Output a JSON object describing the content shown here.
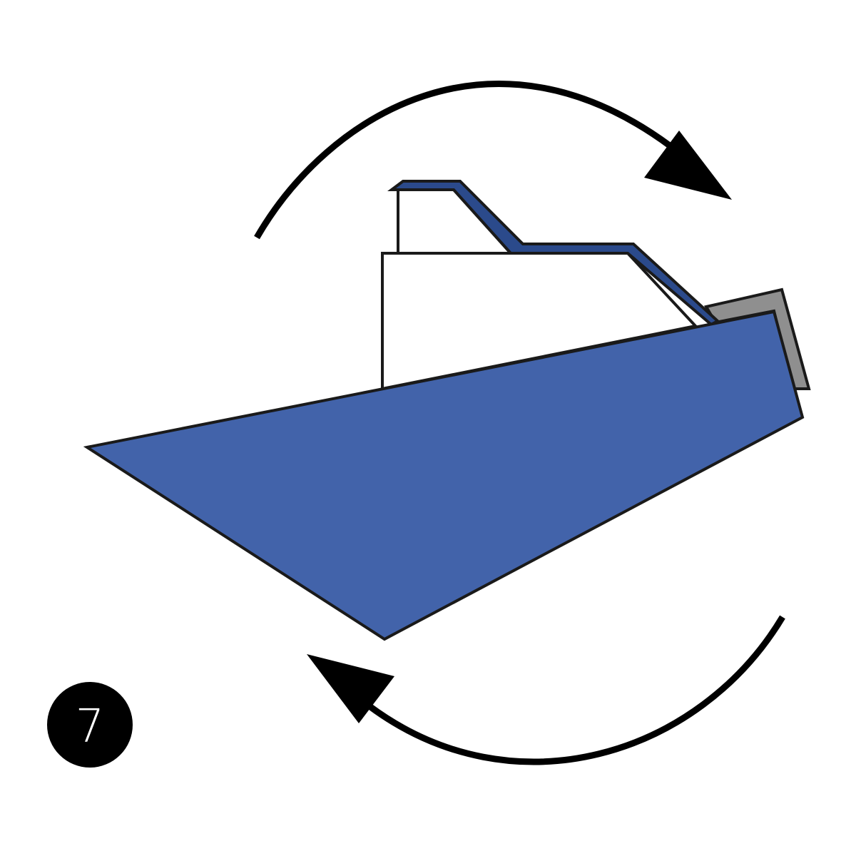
{
  "step": {
    "number": "7",
    "badge_color": "#000000",
    "text_color": "#ffffff"
  },
  "colors": {
    "paper_blue": "#4263aa",
    "paper_blue_dark": "#2b4a8b",
    "paper_back_gray": "#8f8f8f",
    "paper_white": "#ffffff",
    "outline": "#1a1a1a"
  },
  "icons": {
    "top_arrow": "curved-arrow-clockwise-icon",
    "bottom_arrow": "curved-arrow-clockwise-icon"
  }
}
